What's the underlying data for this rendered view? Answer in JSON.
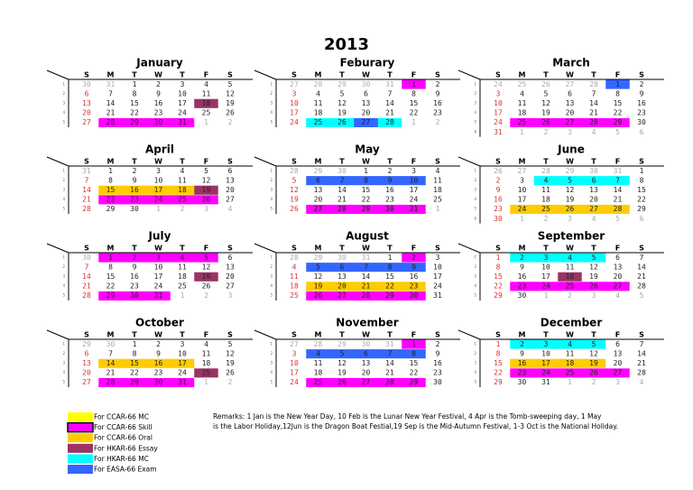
{
  "title": "2013",
  "weekdays": [
    "S",
    "M",
    "T",
    "W",
    "T",
    "F",
    "S"
  ],
  "week_labels": [
    "1",
    "2",
    "3",
    "4",
    "5",
    "6"
  ],
  "legend": [
    {
      "label": "For CCAR-66 MC",
      "color": "#ffff00"
    },
    {
      "label": "For CCAR-66 Skill",
      "color": "#ff00ff"
    },
    {
      "label": "For CCAR-66 Oral",
      "color": "#ffcc00"
    },
    {
      "label": "For HKAR-66 Essay",
      "color": "#993366"
    },
    {
      "label": "For HKAR-66 MC",
      "color": "#00ffff"
    },
    {
      "label": "For EASA-66 Exam",
      "color": "#3366ff"
    }
  ],
  "remarks": [
    "Remarks: 1 Jan is the New Year Day, 10 Feb is the Lunar New Year Festival,  4 Apr is the Tomb-sweeping day, 1 May",
    "is the Labor Holiday,12Jun is the Dragon Boat Festial,19 Sep is the Mid-Autumn Festival, 1-3 Oct is the National Holiday."
  ],
  "months": [
    {
      "name": "January",
      "weeks": [
        [
          30,
          31,
          1,
          2,
          3,
          4,
          5
        ],
        [
          6,
          7,
          8,
          9,
          10,
          11,
          12
        ],
        [
          13,
          14,
          15,
          16,
          17,
          18,
          19
        ],
        [
          20,
          21,
          22,
          23,
          24,
          25,
          26
        ],
        [
          27,
          28,
          29,
          30,
          31,
          1,
          2
        ]
      ],
      "highlights": [
        {
          "row": 2,
          "from": 5,
          "to": 5,
          "legend": 3
        },
        {
          "row": 4,
          "from": 1,
          "to": 4,
          "legend": 1
        }
      ]
    },
    {
      "name": "Feburary",
      "weeks": [
        [
          27,
          28,
          29,
          30,
          31,
          1,
          2
        ],
        [
          3,
          4,
          5,
          6,
          7,
          8,
          9
        ],
        [
          10,
          11,
          12,
          13,
          14,
          15,
          16
        ],
        [
          17,
          18,
          19,
          20,
          21,
          22,
          23
        ],
        [
          24,
          25,
          26,
          27,
          28,
          1,
          2
        ]
      ],
      "highlights": [
        {
          "row": 0,
          "from": 5,
          "to": 5,
          "legend": 1
        },
        {
          "row": 4,
          "from": 1,
          "to": 4,
          "legend": 4
        },
        {
          "row": 4,
          "from": 3,
          "to": 3,
          "legend": 5
        }
      ]
    },
    {
      "name": "March",
      "weeks": [
        [
          24,
          25,
          26,
          27,
          28,
          1,
          2
        ],
        [
          3,
          4,
          5,
          6,
          7,
          8,
          9
        ],
        [
          10,
          11,
          12,
          13,
          14,
          15,
          16
        ],
        [
          17,
          18,
          19,
          20,
          21,
          22,
          23
        ],
        [
          24,
          25,
          26,
          27,
          28,
          29,
          30
        ],
        [
          31,
          1,
          2,
          3,
          4,
          5,
          6
        ]
      ],
      "highlights": [
        {
          "row": 0,
          "from": 5,
          "to": 5,
          "legend": 5
        },
        {
          "row": 4,
          "from": 1,
          "to": 5,
          "legend": 1
        }
      ]
    },
    {
      "name": "April",
      "weeks": [
        [
          31,
          1,
          2,
          3,
          4,
          5,
          6
        ],
        [
          7,
          8,
          9,
          10,
          11,
          12,
          13
        ],
        [
          14,
          15,
          16,
          17,
          18,
          19,
          20
        ],
        [
          21,
          22,
          23,
          24,
          25,
          26,
          27
        ],
        [
          28,
          29,
          30,
          1,
          2,
          3,
          4
        ]
      ],
      "highlights": [
        {
          "row": 2,
          "from": 1,
          "to": 4,
          "legend": 2
        },
        {
          "row": 2,
          "from": 5,
          "to": 5,
          "legend": 3
        },
        {
          "row": 3,
          "from": 1,
          "to": 5,
          "legend": 1
        }
      ]
    },
    {
      "name": "May",
      "weeks": [
        [
          28,
          29,
          30,
          1,
          2,
          3,
          4
        ],
        [
          5,
          6,
          7,
          8,
          9,
          10,
          11
        ],
        [
          12,
          13,
          14,
          15,
          16,
          17,
          18
        ],
        [
          19,
          20,
          21,
          22,
          23,
          24,
          25
        ],
        [
          26,
          27,
          28,
          29,
          30,
          31,
          1
        ]
      ],
      "highlights": [
        {
          "row": 1,
          "from": 1,
          "to": 5,
          "legend": 5
        },
        {
          "row": 4,
          "from": 1,
          "to": 5,
          "legend": 1
        }
      ]
    },
    {
      "name": "June",
      "weeks": [
        [
          26,
          27,
          28,
          29,
          30,
          31,
          1
        ],
        [
          2,
          3,
          4,
          5,
          6,
          7,
          8
        ],
        [
          9,
          10,
          11,
          12,
          13,
          14,
          15
        ],
        [
          16,
          17,
          18,
          19,
          20,
          21,
          22
        ],
        [
          23,
          24,
          25,
          26,
          27,
          28,
          29
        ],
        [
          30,
          1,
          2,
          3,
          4,
          5,
          6
        ]
      ],
      "highlights": [
        {
          "row": 1,
          "from": 2,
          "to": 5,
          "legend": 4
        },
        {
          "row": 4,
          "from": 1,
          "to": 5,
          "legend": 2
        }
      ]
    },
    {
      "name": "July",
      "weeks": [
        [
          30,
          1,
          2,
          3,
          4,
          5,
          6
        ],
        [
          7,
          8,
          9,
          10,
          11,
          12,
          13
        ],
        [
          14,
          15,
          16,
          17,
          18,
          19,
          20
        ],
        [
          21,
          22,
          23,
          24,
          25,
          26,
          27
        ],
        [
          28,
          29,
          30,
          31,
          1,
          2,
          3
        ]
      ],
      "highlights": [
        {
          "row": 0,
          "from": 1,
          "to": 5,
          "legend": 1
        },
        {
          "row": 2,
          "from": 5,
          "to": 5,
          "legend": 3
        },
        {
          "row": 4,
          "from": 1,
          "to": 3,
          "legend": 1
        }
      ]
    },
    {
      "name": "August",
      "weeks": [
        [
          28,
          29,
          30,
          31,
          1,
          2,
          3
        ],
        [
          4,
          5,
          6,
          7,
          8,
          9,
          10
        ],
        [
          11,
          12,
          13,
          14,
          15,
          16,
          17
        ],
        [
          18,
          19,
          20,
          21,
          22,
          23,
          24
        ],
        [
          25,
          26,
          27,
          28,
          29,
          30,
          31
        ]
      ],
      "highlights": [
        {
          "row": 0,
          "from": 5,
          "to": 5,
          "legend": 1
        },
        {
          "row": 1,
          "from": 1,
          "to": 5,
          "legend": 5
        },
        {
          "row": 3,
          "from": 1,
          "to": 5,
          "legend": 2
        },
        {
          "row": 4,
          "from": 1,
          "to": 5,
          "legend": 1
        }
      ]
    },
    {
      "name": "September",
      "weeks": [
        [
          1,
          2,
          3,
          4,
          5,
          6,
          7
        ],
        [
          8,
          9,
          10,
          11,
          12,
          13,
          14
        ],
        [
          15,
          16,
          17,
          18,
          19,
          20,
          21
        ],
        [
          22,
          23,
          24,
          25,
          26,
          27,
          28
        ],
        [
          29,
          30,
          1,
          2,
          3,
          4,
          5
        ]
      ],
      "highlights": [
        {
          "row": 0,
          "from": 1,
          "to": 4,
          "legend": 4
        },
        {
          "row": 2,
          "from": 3,
          "to": 3,
          "legend": 3
        },
        {
          "row": 3,
          "from": 1,
          "to": 5,
          "legend": 1
        }
      ]
    },
    {
      "name": "October",
      "weeks": [
        [
          29,
          30,
          1,
          2,
          3,
          4,
          5
        ],
        [
          6,
          7,
          8,
          9,
          10,
          11,
          12
        ],
        [
          13,
          14,
          15,
          16,
          17,
          18,
          19
        ],
        [
          20,
          21,
          22,
          23,
          24,
          25,
          26
        ],
        [
          27,
          28,
          29,
          30,
          31,
          1,
          2
        ]
      ],
      "highlights": [
        {
          "row": 2,
          "from": 1,
          "to": 4,
          "legend": 2
        },
        {
          "row": 3,
          "from": 5,
          "to": 5,
          "legend": 3
        },
        {
          "row": 4,
          "from": 1,
          "to": 4,
          "legend": 1
        }
      ]
    },
    {
      "name": "November",
      "weeks": [
        [
          27,
          28,
          29,
          30,
          31,
          1,
          2
        ],
        [
          3,
          4,
          5,
          6,
          7,
          8,
          9
        ],
        [
          10,
          11,
          12,
          13,
          14,
          15,
          16
        ],
        [
          17,
          18,
          19,
          20,
          21,
          22,
          23
        ],
        [
          24,
          25,
          26,
          27,
          28,
          29,
          30
        ]
      ],
      "highlights": [
        {
          "row": 0,
          "from": 5,
          "to": 5,
          "legend": 1
        },
        {
          "row": 1,
          "from": 1,
          "to": 5,
          "legend": 5
        },
        {
          "row": 4,
          "from": 1,
          "to": 5,
          "legend": 1
        }
      ]
    },
    {
      "name": "December",
      "weeks": [
        [
          1,
          2,
          3,
          4,
          5,
          6,
          7
        ],
        [
          8,
          9,
          10,
          11,
          12,
          13,
          14
        ],
        [
          15,
          16,
          17,
          18,
          19,
          20,
          21
        ],
        [
          22,
          23,
          24,
          25,
          26,
          27,
          28
        ],
        [
          29,
          30,
          31,
          1,
          2,
          3,
          4
        ]
      ],
      "highlights": [
        {
          "row": 0,
          "from": 1,
          "to": 4,
          "legend": 4
        },
        {
          "row": 2,
          "from": 1,
          "to": 4,
          "legend": 2
        },
        {
          "row": 3,
          "from": 1,
          "to": 5,
          "legend": 1
        }
      ]
    }
  ]
}
